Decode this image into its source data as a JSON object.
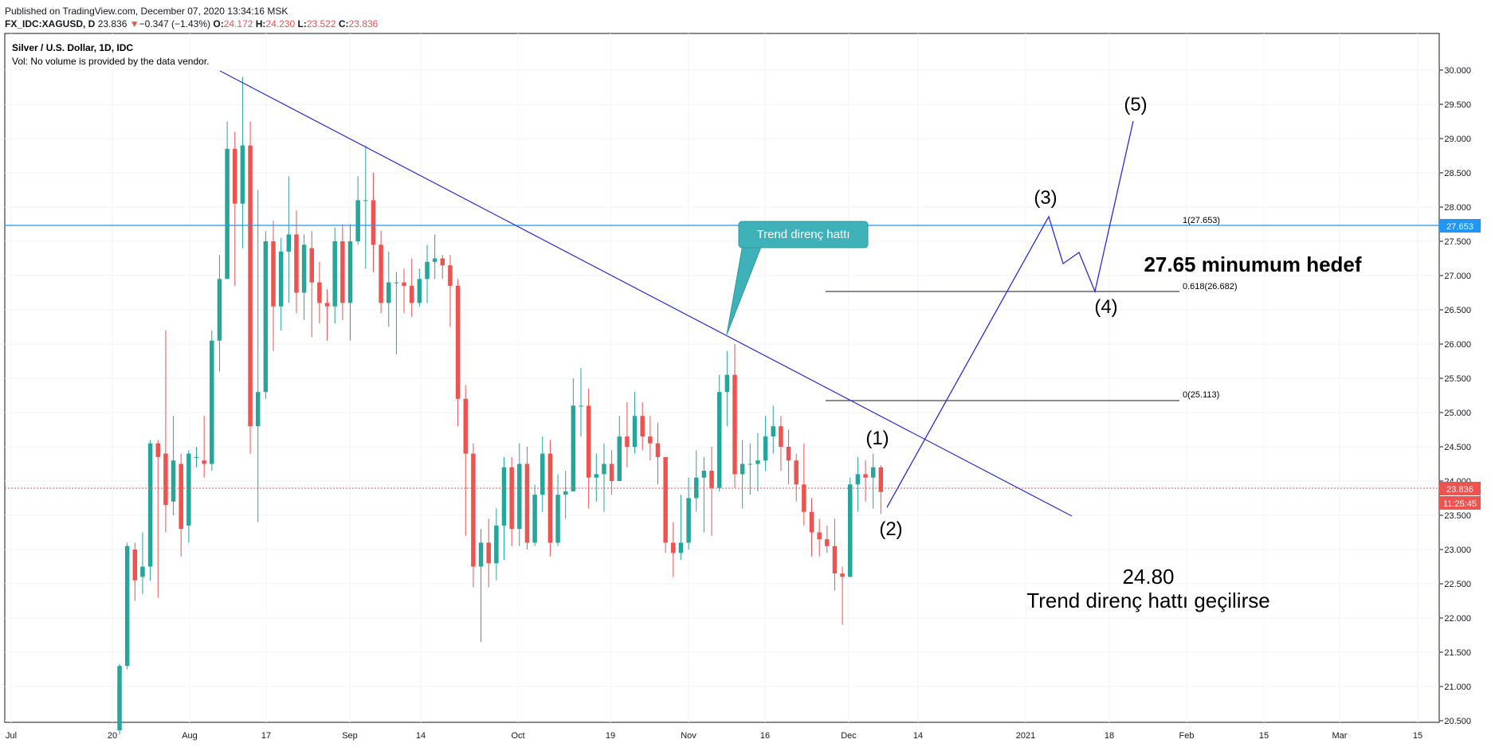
{
  "header": {
    "published": "Published on TradingView.com, December 07, 2020 13:34:16 MSK",
    "symbol": "FX_IDC:XAGUSD, D",
    "last": "23.836",
    "change_arrow": "▼",
    "change": "−0.347 (−1.43%)",
    "o_label": "O:",
    "o": "24.172",
    "h_label": "H:",
    "h": "24.230",
    "l_label": "L:",
    "l": "23.522",
    "c_label": "C:",
    "c": "23.836"
  },
  "legend": {
    "title": "Silver / U.S. Dollar, 1D, IDC",
    "volume_note": "Vol: No volume is provided by the data vendor."
  },
  "annotations": {
    "callout": "Trend direnç hattı",
    "target": "27.65 minumum hedef",
    "breakout_level": "24.80",
    "breakout_text": "Trend direnç hattı geçilirse",
    "wave1": "(1)",
    "wave2": "(2)",
    "wave3": "(3)",
    "wave4": "(4)",
    "wave5": "(5)",
    "fib1": "1(27.653)",
    "fib0618": "0.618(26.682)",
    "fib0": "0(25.113)"
  },
  "price_scale": {
    "current_price": "23.836",
    "countdown": "11:25:45",
    "level_label": "27.653"
  },
  "colors": {
    "up": "#26a69a",
    "down": "#ef5350",
    "trend": "#2b2bde",
    "level": "#2196f3",
    "callout": "#3fb1b8"
  },
  "chart_data": {
    "type": "candlestick",
    "title": "Silver / U.S. Dollar, 1D, IDC",
    "y_ticks": [
      "20.500",
      "21.000",
      "21.500",
      "22.000",
      "22.500",
      "23.000",
      "23.500",
      "24.000",
      "24.500",
      "25.000",
      "25.500",
      "26.000",
      "26.500",
      "27.000",
      "27.500",
      "28.000",
      "28.500",
      "29.000",
      "29.500",
      "30.000"
    ],
    "ylim": [
      20.45,
      30.35
    ],
    "x_ticks": [
      "Jul",
      "20",
      "Aug",
      "17",
      "Sep",
      "14",
      "Oct",
      "19",
      "Nov",
      "16",
      "Dec",
      "14",
      "2021",
      "18",
      "Feb",
      "15",
      "Mar",
      "15"
    ],
    "grid": true,
    "candles": [
      [
        20.36,
        21.3,
        20.3,
        21.33
      ],
      [
        21.3,
        23.05,
        21.25,
        23.1
      ],
      [
        23.0,
        22.55,
        22.25,
        23.1
      ],
      [
        22.6,
        22.75,
        22.35,
        23.25
      ],
      [
        22.75,
        24.55,
        22.55,
        24.6
      ],
      [
        24.55,
        24.35,
        22.3,
        24.6
      ],
      [
        24.4,
        23.65,
        23.25,
        26.2
      ],
      [
        23.7,
        24.3,
        23.5,
        24.95
      ],
      [
        24.25,
        23.3,
        22.9,
        24.4
      ],
      [
        23.35,
        24.4,
        23.1,
        24.45
      ],
      [
        24.35,
        24.35,
        24.2,
        24.5
      ],
      [
        24.3,
        24.25,
        24.05,
        24.95
      ],
      [
        24.25,
        26.05,
        24.15,
        26.2
      ],
      [
        26.05,
        26.95,
        25.6,
        27.3
      ],
      [
        26.95,
        28.85,
        26.95,
        29.25
      ],
      [
        28.85,
        28.05,
        26.85,
        29.1
      ],
      [
        28.05,
        28.9,
        27.4,
        29.9
      ],
      [
        28.9,
        24.8,
        24.4,
        29.25
      ],
      [
        24.8,
        25.3,
        23.4,
        28.25
      ],
      [
        25.3,
        27.5,
        25.2,
        27.65
      ],
      [
        27.5,
        26.55,
        25.9,
        27.8
      ],
      [
        26.55,
        27.35,
        26.2,
        27.55
      ],
      [
        27.35,
        27.6,
        26.6,
        28.45
      ],
      [
        27.6,
        26.75,
        26.45,
        27.95
      ],
      [
        26.75,
        27.45,
        26.35,
        27.6
      ],
      [
        27.4,
        26.9,
        26.1,
        27.65
      ],
      [
        26.9,
        26.6,
        26.3,
        27.2
      ],
      [
        26.6,
        26.55,
        26.05,
        26.8
      ],
      [
        26.55,
        27.5,
        26.3,
        27.7
      ],
      [
        27.5,
        26.6,
        26.35,
        27.75
      ],
      [
        26.6,
        27.5,
        26.05,
        27.75
      ],
      [
        27.5,
        28.1,
        27.45,
        28.45
      ],
      [
        28.1,
        28.1,
        27.1,
        28.9
      ],
      [
        28.1,
        27.45,
        27.05,
        28.5
      ],
      [
        27.45,
        26.6,
        26.45,
        27.65
      ],
      [
        26.6,
        26.9,
        26.25,
        27.35
      ],
      [
        26.9,
        26.9,
        25.85,
        27.05
      ],
      [
        26.9,
        26.85,
        26.45,
        27.1
      ],
      [
        26.85,
        26.6,
        26.4,
        27.25
      ],
      [
        26.6,
        26.95,
        26.55,
        27.1
      ],
      [
        26.95,
        27.2,
        26.6,
        27.45
      ],
      [
        27.2,
        27.25,
        26.95,
        27.6
      ],
      [
        27.25,
        27.15,
        26.95,
        27.3
      ],
      [
        27.15,
        26.85,
        26.25,
        27.3
      ],
      [
        26.85,
        25.2,
        24.8,
        26.95
      ],
      [
        25.2,
        24.4,
        23.2,
        25.4
      ],
      [
        24.4,
        22.75,
        22.45,
        24.55
      ],
      [
        22.75,
        23.1,
        21.65,
        23.3
      ],
      [
        23.1,
        22.8,
        22.45,
        23.45
      ],
      [
        22.8,
        23.35,
        22.55,
        23.6
      ],
      [
        23.35,
        24.2,
        22.85,
        24.35
      ],
      [
        24.2,
        23.3,
        23.05,
        24.35
      ],
      [
        23.3,
        24.25,
        23.05,
        24.55
      ],
      [
        24.25,
        23.1,
        23.0,
        24.5
      ],
      [
        23.1,
        23.8,
        23.05,
        23.95
      ],
      [
        23.8,
        24.4,
        23.55,
        24.65
      ],
      [
        24.4,
        23.1,
        22.9,
        24.6
      ],
      [
        23.1,
        23.8,
        23.05,
        24.1
      ],
      [
        23.8,
        23.85,
        23.45,
        24.15
      ],
      [
        23.85,
        25.1,
        23.85,
        25.5
      ],
      [
        25.1,
        25.1,
        24.65,
        25.65
      ],
      [
        25.1,
        24.05,
        23.6,
        25.35
      ],
      [
        24.05,
        24.1,
        23.7,
        24.4
      ],
      [
        24.1,
        24.25,
        23.55,
        24.55
      ],
      [
        24.25,
        24.0,
        23.8,
        24.45
      ],
      [
        24.0,
        24.65,
        24.0,
        24.95
      ],
      [
        24.65,
        24.5,
        24.2,
        25.15
      ],
      [
        24.5,
        24.95,
        24.4,
        25.3
      ],
      [
        24.95,
        24.65,
        24.45,
        25.15
      ],
      [
        24.65,
        24.55,
        24.3,
        24.95
      ],
      [
        24.55,
        24.35,
        23.95,
        24.85
      ],
      [
        24.35,
        23.1,
        22.95,
        24.35
      ],
      [
        23.1,
        22.95,
        22.6,
        23.4
      ],
      [
        22.95,
        23.1,
        22.85,
        23.8
      ],
      [
        23.1,
        23.75,
        23.0,
        24.05
      ],
      [
        23.75,
        24.05,
        23.55,
        24.45
      ],
      [
        24.05,
        24.15,
        23.25,
        24.35
      ],
      [
        24.15,
        23.9,
        23.2,
        24.5
      ],
      [
        23.9,
        25.3,
        23.85,
        25.55
      ],
      [
        25.3,
        25.55,
        24.8,
        25.9
      ],
      [
        25.55,
        24.1,
        23.9,
        26.0
      ],
      [
        24.1,
        24.25,
        23.6,
        24.6
      ],
      [
        24.25,
        24.25,
        23.8,
        24.55
      ],
      [
        24.25,
        24.3,
        23.85,
        24.7
      ],
      [
        24.3,
        24.65,
        24.15,
        24.95
      ],
      [
        24.65,
        24.8,
        24.4,
        25.1
      ],
      [
        24.8,
        24.5,
        24.15,
        24.95
      ],
      [
        24.5,
        24.3,
        23.95,
        24.75
      ],
      [
        24.3,
        23.95,
        23.7,
        24.4
      ],
      [
        23.95,
        23.55,
        23.35,
        24.55
      ],
      [
        23.55,
        23.25,
        22.9,
        23.75
      ],
      [
        23.25,
        23.15,
        22.9,
        23.45
      ],
      [
        23.15,
        23.05,
        22.95,
        23.35
      ],
      [
        23.05,
        22.65,
        22.4,
        23.45
      ],
      [
        22.65,
        22.6,
        21.9,
        22.75
      ],
      [
        22.6,
        23.95,
        22.6,
        24.05
      ],
      [
        23.95,
        24.1,
        23.55,
        24.35
      ],
      [
        24.1,
        24.05,
        23.7,
        24.3
      ],
      [
        24.05,
        24.2,
        23.6,
        24.4
      ],
      [
        24.2,
        23.84,
        23.52,
        24.23
      ]
    ],
    "levels": [
      {
        "label": "1(27.653)",
        "value": 27.653
      },
      {
        "label": "0.618(26.682)",
        "value": 26.682
      },
      {
        "label": "0(25.113)",
        "value": 25.113
      }
    ]
  }
}
